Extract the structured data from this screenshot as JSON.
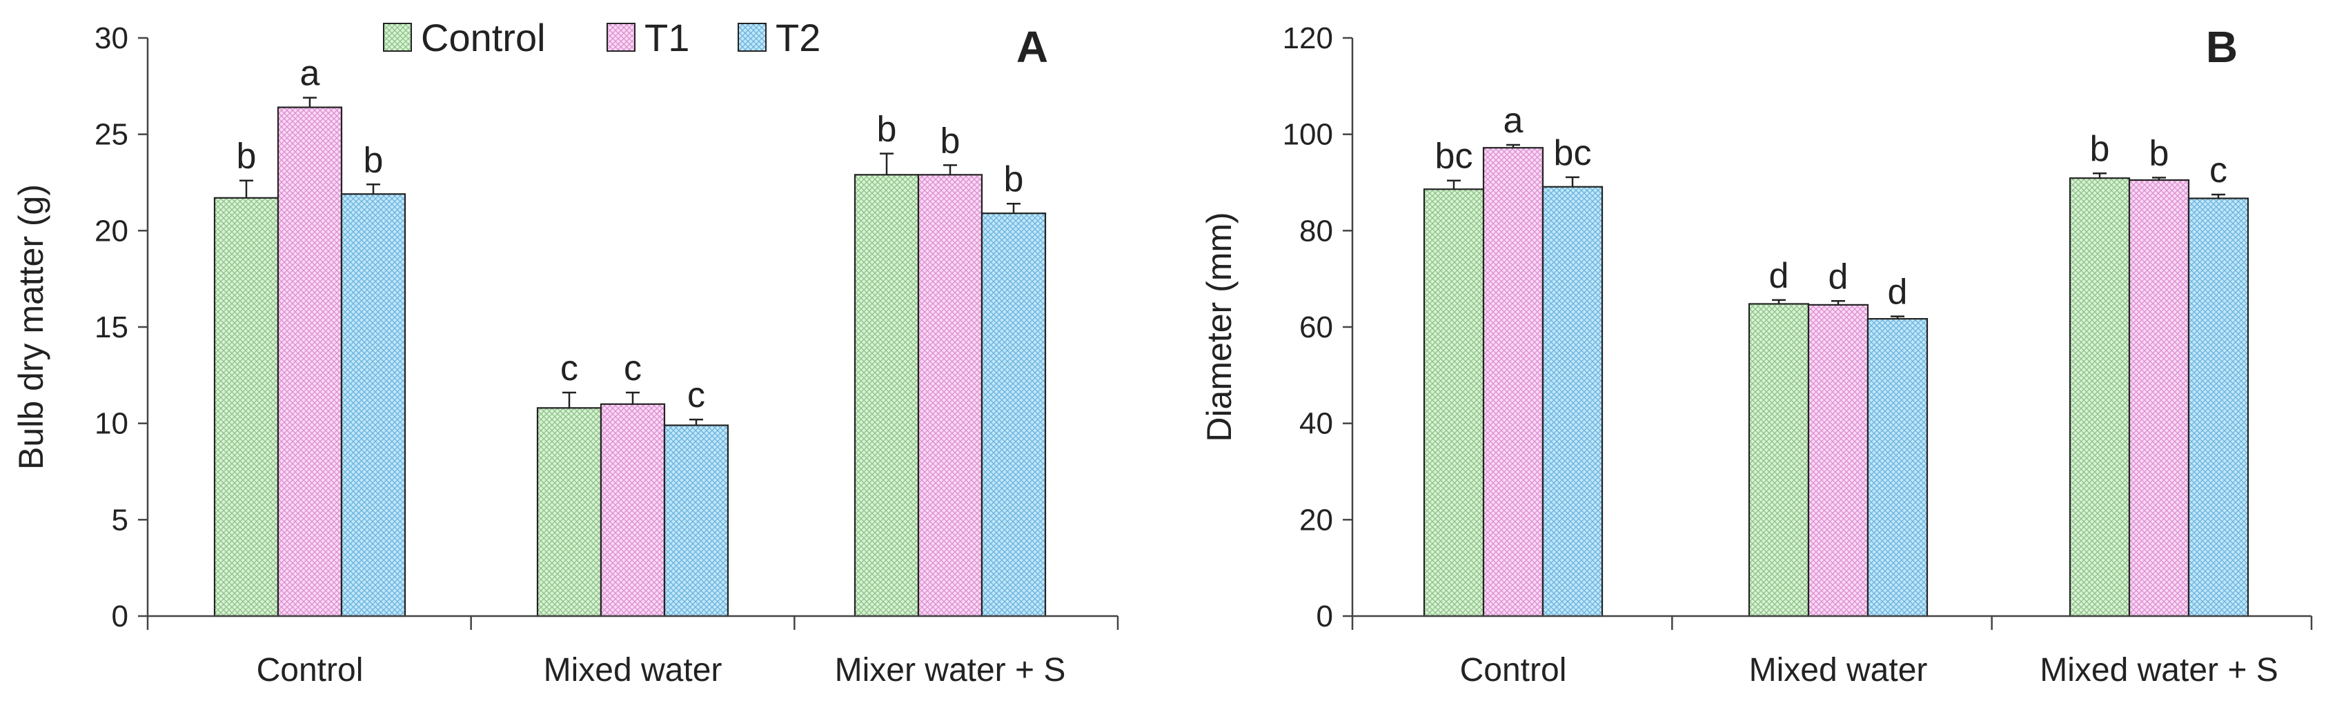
{
  "legend": {
    "items": [
      {
        "label": "Control",
        "fill": "#c6eec1",
        "stroke": "#7aa876"
      },
      {
        "label": "T1",
        "fill": "#fbc8f3",
        "stroke": "#c27fb8"
      },
      {
        "label": "T2",
        "fill": "#a6ddf7",
        "stroke": "#6aa9cc"
      }
    ]
  },
  "colors": {
    "axis": "#444444",
    "bar_border": "#222222",
    "error_bar": "#222222"
  },
  "chart_data": [
    {
      "type": "bar",
      "panel": "A",
      "title": "",
      "xlabel": "",
      "ylabel": "Bulb dry matter (g)",
      "ylim": [
        0,
        30
      ],
      "yticks": [
        0,
        5,
        10,
        15,
        20,
        25,
        30
      ],
      "ytick_labels": [
        "0",
        "5",
        "10",
        "15",
        "20",
        "25",
        "30"
      ],
      "categories": [
        "Control",
        "Mixed water",
        "Mixer water + S"
      ],
      "grid": false,
      "legend_position": "top",
      "series": [
        {
          "name": "Control",
          "values": [
            21.7,
            10.8,
            22.9
          ],
          "errors": [
            0.9,
            0.8,
            1.1
          ],
          "labels": [
            "b",
            "c",
            "b"
          ]
        },
        {
          "name": "T1",
          "values": [
            26.4,
            11.0,
            22.9
          ],
          "errors": [
            0.5,
            0.6,
            0.5
          ],
          "labels": [
            "a",
            "c",
            "b"
          ]
        },
        {
          "name": "T2",
          "values": [
            21.9,
            9.9,
            20.9
          ],
          "errors": [
            0.5,
            0.3,
            0.5
          ],
          "labels": [
            "b",
            "c",
            "b"
          ]
        }
      ]
    },
    {
      "type": "bar",
      "panel": "B",
      "title": "",
      "xlabel": "",
      "ylabel": "Diameter (mm)",
      "ylim": [
        0,
        120
      ],
      "yticks": [
        0,
        20,
        40,
        60,
        80,
        100,
        120
      ],
      "ytick_labels": [
        "0",
        "20",
        "40",
        "60",
        "80",
        "100",
        "120"
      ],
      "categories": [
        "Control",
        "Mixed water",
        "Mixed water + S"
      ],
      "grid": false,
      "legend_position": "none",
      "series": [
        {
          "name": "Control",
          "values": [
            88.6,
            64.8,
            90.9
          ],
          "errors": [
            1.8,
            0.8,
            1.0
          ],
          "labels": [
            "bc",
            "d",
            "b"
          ]
        },
        {
          "name": "T1",
          "values": [
            97.2,
            64.6,
            90.5
          ],
          "errors": [
            0.6,
            0.8,
            0.5
          ],
          "labels": [
            "a",
            "d",
            "b"
          ]
        },
        {
          "name": "T2",
          "values": [
            89.1,
            61.7,
            86.7
          ],
          "errors": [
            2.0,
            0.5,
            0.8
          ],
          "labels": [
            "bc",
            "d",
            "c"
          ]
        }
      ]
    }
  ]
}
